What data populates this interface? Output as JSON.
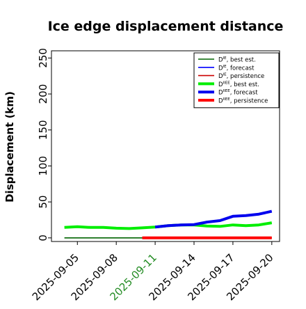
{
  "chart_data": {
    "type": "line",
    "title": "Ice edge displacement distance",
    "xlabel": "",
    "ylabel": "Displacement (km)",
    "xlim": [
      "2025-09-03",
      "2025-09-20"
    ],
    "ylim": [
      -5,
      260
    ],
    "yticks": [
      0,
      50,
      100,
      150,
      200,
      250
    ],
    "xticks": [
      "2025-09-05",
      "2025-09-08",
      "2025-09-11",
      "2025-09-14",
      "2025-09-17",
      "2025-09-20"
    ],
    "highlight_tick": "2025-09-11",
    "highlight_color": "#228b22",
    "grid": false,
    "legend_position": "top-right",
    "series": [
      {
        "name": "D^IE, best est.",
        "legend_base": "D",
        "legend_sup": "IE",
        "legend_text": ", best est.",
        "color": "#006400",
        "width": "thin",
        "points": [
          [
            "2025-09-04",
            0
          ],
          [
            "2025-09-10",
            0
          ]
        ]
      },
      {
        "name": "D^IE, forecast",
        "legend_base": "D",
        "legend_sup": "IE",
        "legend_text": ", forecast",
        "color": "#0000ff",
        "width": "thin",
        "points": []
      },
      {
        "name": "D^IE, persistence",
        "legend_base": "D",
        "legend_sup": "IE",
        "legend_text": ", persistence",
        "color": "#cc0000",
        "width": "thin",
        "points": [
          [
            "2025-09-10",
            0
          ],
          [
            "2025-09-20",
            0
          ]
        ]
      },
      {
        "name": "D^IIEE, best est.",
        "legend_base": "D",
        "legend_sup": "IIEE",
        "legend_text": ", best est.",
        "color": "#00ee00",
        "width": "thick",
        "points": [
          [
            "2025-09-04",
            14.5
          ],
          [
            "2025-09-05",
            15.5
          ],
          [
            "2025-09-06",
            14.5
          ],
          [
            "2025-09-07",
            14.5
          ],
          [
            "2025-09-08",
            13.5
          ],
          [
            "2025-09-09",
            13
          ],
          [
            "2025-09-10",
            14
          ],
          [
            "2025-09-11",
            15
          ],
          [
            "2025-09-12",
            17
          ],
          [
            "2025-09-13",
            18
          ],
          [
            "2025-09-14",
            18
          ],
          [
            "2025-09-15",
            16.5
          ],
          [
            "2025-09-16",
            16
          ],
          [
            "2025-09-17",
            18
          ],
          [
            "2025-09-18",
            17
          ],
          [
            "2025-09-19",
            18
          ],
          [
            "2025-09-20",
            21
          ]
        ]
      },
      {
        "name": "D^IIEE, forecast",
        "legend_base": "D",
        "legend_sup": "IIEE",
        "legend_text": ", forecast",
        "color": "#0000ee",
        "width": "thick",
        "points": [
          [
            "2025-09-11",
            15
          ],
          [
            "2025-09-12",
            17
          ],
          [
            "2025-09-13",
            18
          ],
          [
            "2025-09-14",
            18.5
          ],
          [
            "2025-09-15",
            22
          ],
          [
            "2025-09-16",
            24
          ],
          [
            "2025-09-17",
            30
          ],
          [
            "2025-09-18",
            31
          ],
          [
            "2025-09-19",
            33
          ],
          [
            "2025-09-20",
            37
          ]
        ]
      },
      {
        "name": "D^IIEE, persistence",
        "legend_base": "D",
        "legend_sup": "IIEE",
        "legend_text": ", persistence",
        "color": "#ff0000",
        "width": "thick",
        "points": [
          [
            "2025-09-10",
            0
          ],
          [
            "2025-09-20",
            0
          ]
        ]
      }
    ]
  }
}
